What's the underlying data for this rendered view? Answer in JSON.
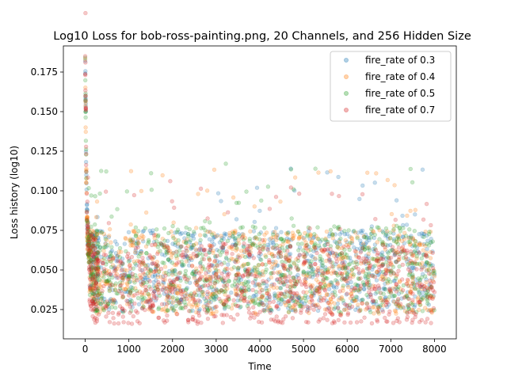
{
  "chart_data": {
    "type": "scatter",
    "title": "Log10 Loss for bob-ross-painting.png, 20 Channels, and 256 Hidden Size",
    "xlabel": "Time",
    "ylabel": "Loss history (log10)",
    "xlim": [
      -500,
      8500
    ],
    "ylim": [
      0.0065,
      0.1915
    ],
    "xticks": [
      0,
      1000,
      2000,
      3000,
      4000,
      5000,
      6000,
      7000,
      8000
    ],
    "xtick_labels": [
      "0",
      "1000",
      "2000",
      "3000",
      "4000",
      "5000",
      "6000",
      "7000",
      "8000"
    ],
    "yticks": [
      0.025,
      0.05,
      0.075,
      0.1,
      0.125,
      0.15,
      0.175
    ],
    "ytick_labels": [
      "0.025",
      "0.050",
      "0.075",
      "0.100",
      "0.125",
      "0.150",
      "0.175"
    ],
    "legend_position": "top-right",
    "marker": "circle",
    "alpha": 0.25,
    "series": [
      {
        "name": "fire_rate of 0.3",
        "color": "#1f77b4",
        "start_value": 0.182,
        "floor": 0.024,
        "ceiling": 0.075,
        "x": [
          0,
          10,
          25,
          50,
          100,
          200,
          300,
          500,
          800,
          1000,
          1500,
          2000,
          2500,
          3000,
          3500,
          4000,
          4500,
          5000,
          5500,
          6000,
          6500,
          7000,
          7500,
          8000
        ],
        "y": [
          0.182,
          0.158,
          0.11,
          0.076,
          0.064,
          0.052,
          0.047,
          0.043,
          0.04,
          0.045,
          0.05,
          0.048,
          0.046,
          0.049,
          0.05,
          0.047,
          0.045,
          0.048,
          0.049,
          0.046,
          0.047,
          0.048,
          0.046,
          0.047
        ]
      },
      {
        "name": "fire_rate of 0.4",
        "color": "#ff7f0e",
        "start_value": 0.183,
        "floor": 0.022,
        "ceiling": 0.075,
        "x": [
          0,
          10,
          25,
          50,
          100,
          200,
          300,
          500,
          800,
          1000,
          1500,
          2000,
          2500,
          3000,
          3500,
          4000,
          4500,
          5000,
          5500,
          6000,
          6500,
          7000,
          7500,
          8000
        ],
        "y": [
          0.183,
          0.14,
          0.105,
          0.072,
          0.061,
          0.05,
          0.046,
          0.042,
          0.04,
          0.044,
          0.048,
          0.047,
          0.045,
          0.047,
          0.048,
          0.046,
          0.045,
          0.047,
          0.048,
          0.045,
          0.046,
          0.047,
          0.045,
          0.046
        ]
      },
      {
        "name": "fire_rate of 0.5",
        "color": "#2ca02c",
        "start_value": 0.184,
        "floor": 0.022,
        "ceiling": 0.078,
        "x": [
          0,
          10,
          25,
          50,
          100,
          200,
          300,
          500,
          800,
          1000,
          1500,
          2000,
          2500,
          3000,
          3500,
          4000,
          4500,
          5000,
          5500,
          6000,
          6500,
          7000,
          7500,
          8000
        ],
        "y": [
          0.184,
          0.15,
          0.108,
          0.07,
          0.06,
          0.05,
          0.046,
          0.043,
          0.042,
          0.046,
          0.05,
          0.049,
          0.047,
          0.05,
          0.051,
          0.048,
          0.047,
          0.049,
          0.05,
          0.047,
          0.048,
          0.049,
          0.047,
          0.048
        ]
      },
      {
        "name": "fire_rate of 0.7",
        "color": "#d62728",
        "start_value": 0.185,
        "floor": 0.016,
        "ceiling": 0.075,
        "x": [
          0,
          10,
          25,
          50,
          100,
          200,
          300,
          500,
          800,
          1000,
          1500,
          2000,
          2500,
          3000,
          3500,
          4000,
          4500,
          5000,
          5500,
          6000,
          6500,
          7000,
          7500,
          8000
        ],
        "y": [
          0.185,
          0.16,
          0.112,
          0.074,
          0.055,
          0.04,
          0.034,
          0.03,
          0.027,
          0.034,
          0.038,
          0.036,
          0.035,
          0.037,
          0.038,
          0.036,
          0.035,
          0.036,
          0.037,
          0.035,
          0.036,
          0.036,
          0.035,
          0.036
        ]
      }
    ]
  }
}
